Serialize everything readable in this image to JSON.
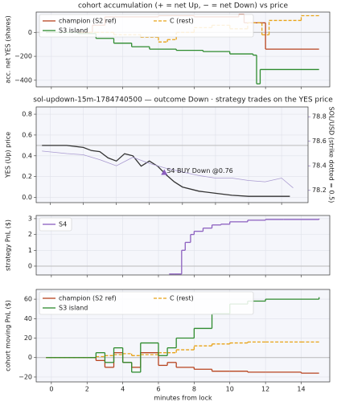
{
  "chart_data": [
    {
      "type": "line",
      "title": "cohort accumulation (+ = net Up, − = net Down) vs price",
      "ylabel": "acc. net YES (shares)",
      "ylim": [
        -455,
        170
      ],
      "yticks": [
        0,
        {
          "value": -200,
          "label": "−200"
        },
        {
          "value": -400,
          "label": "−400"
        }
      ],
      "hline": 0,
      "grid": true,
      "legend": "upper left",
      "series": [
        {
          "name": "champion (S2 ref)",
          "color": "#b8441f",
          "step": true,
          "x": [
            -0.3,
            1.8,
            2.3,
            3,
            6,
            8,
            10.5,
            10.8,
            11.7,
            12,
            15
          ],
          "values": [
            0,
            0,
            60,
            130,
            140,
            130,
            150,
            80,
            80,
            -140,
            -140
          ]
        },
        {
          "name": "C (rest)",
          "color": "#e8a317",
          "dash": true,
          "step": true,
          "x": [
            -0.3,
            2.5,
            3.5,
            5,
            6,
            6.5,
            7,
            8,
            9,
            10,
            11,
            11.8,
            12.2,
            14,
            15
          ],
          "values": [
            0,
            0,
            -20,
            -40,
            -80,
            -60,
            0,
            40,
            60,
            30,
            80,
            -20,
            100,
            140,
            140
          ]
        },
        {
          "name": "S3 island",
          "color": "#2e8b2e",
          "step": true,
          "x": [
            -0.3,
            1.5,
            2.5,
            3.5,
            4.5,
            5.5,
            7,
            8.5,
            10,
            11.3,
            11.5,
            11.7,
            15
          ],
          "values": [
            0,
            -10,
            -50,
            -90,
            -120,
            -140,
            -150,
            -160,
            -180,
            -190,
            -430,
            -310,
            -310
          ]
        }
      ]
    },
    {
      "type": "line",
      "title": "sol-updown-15m-1784740500 — outcome Down · strategy trades on the YES price",
      "ylabel": "YES (Up) price",
      "y2label": "SOL/USD (strike dotted = 0.5)",
      "y2color": "#8b6fc0",
      "ylim": [
        -0.05,
        0.87
      ],
      "yticks": [
        {
          "value": 0,
          "label": "0.0"
        },
        0.2,
        0.4,
        0.6,
        0.8
      ],
      "y2lim": [
        78.1,
        78.88
      ],
      "y2ticks": [
        78.2,
        78.4,
        78.6,
        78.8
      ],
      "hline": 0.5,
      "grid": true,
      "series": [
        {
          "color": "#333333",
          "x": [
            -0.5,
            1,
            2,
            2.5,
            3,
            3.5,
            4,
            4.5,
            5,
            5.5,
            6,
            6.5,
            7,
            7.5,
            8,
            9,
            10,
            11,
            12,
            13,
            14.5
          ],
          "values": [
            0.5,
            0.5,
            0.48,
            0.45,
            0.44,
            0.38,
            0.35,
            0.42,
            0.4,
            0.3,
            0.35,
            0.3,
            0.22,
            0.15,
            0.1,
            0.06,
            0.04,
            0.02,
            0.01,
            0.01,
            0.01
          ]
        },
        {
          "color": "#a99ad0",
          "axis": "y2",
          "x": [
            -0.5,
            1,
            2,
            3,
            4,
            5,
            6,
            7,
            8,
            9,
            10,
            11,
            12,
            13,
            14,
            14.7
          ],
          "values": [
            78.52,
            78.5,
            78.49,
            78.45,
            78.4,
            78.47,
            78.42,
            78.38,
            78.35,
            78.32,
            78.3,
            78.3,
            78.28,
            78.27,
            78.3,
            78.22
          ]
        }
      ],
      "annotations": [
        {
          "text": "S4 BUY Down @0.76",
          "x": 6.9,
          "y": 0.24,
          "color": "#8b5fbf"
        }
      ]
    },
    {
      "type": "line",
      "ylabel": "strategy PnL ($)",
      "ylim": [
        -0.56,
        3.2
      ],
      "yticks": [
        0,
        1,
        2,
        3
      ],
      "hline": 0,
      "grid": true,
      "legend": "upper left",
      "series": [
        {
          "name": "S4",
          "color": "#8b5fbf",
          "step": true,
          "x": [
            6.6,
            6.9,
            7.3,
            7.5,
            7.8,
            8,
            8.5,
            9,
            9.5,
            10,
            11,
            12,
            13,
            15
          ],
          "values": [
            -0.5,
            -0.5,
            1.0,
            1.5,
            2.0,
            2.2,
            2.4,
            2.6,
            2.65,
            2.8,
            2.9,
            2.95,
            2.95,
            3.0
          ]
        }
      ]
    },
    {
      "type": "line",
      "ylabel": "cohort moving PnL ($)",
      "xlabel": "minutes from lock",
      "xlim": [
        -0.85,
        15.6
      ],
      "xticks": [
        0,
        2,
        4,
        6,
        8,
        10,
        12,
        14
      ],
      "ylim": [
        -25,
        70
      ],
      "yticks": [
        {
          "value": -20,
          "label": "−20"
        },
        0,
        20,
        40,
        60
      ],
      "hline": 0,
      "grid": true,
      "legend": "upper left",
      "series": [
        {
          "name": "champion (S2 ref)",
          "color": "#b8441f",
          "step": true,
          "x": [
            -0.3,
            2,
            2.5,
            3,
            3.5,
            4,
            4.5,
            5,
            6,
            6.5,
            7,
            8,
            9,
            10,
            11,
            12,
            14,
            15
          ],
          "values": [
            0,
            0,
            -3,
            -10,
            5,
            -5,
            -10,
            5,
            -8,
            -5,
            -10,
            -12,
            -14,
            -14,
            -15,
            -15,
            -16,
            -16
          ]
        },
        {
          "name": "C (rest)",
          "color": "#e8a317",
          "dash": true,
          "step": true,
          "x": [
            -0.3,
            2,
            2.5,
            3,
            3.5,
            4,
            4.5,
            5,
            6,
            6.5,
            7,
            8,
            9,
            10,
            11,
            12,
            14,
            15
          ],
          "values": [
            0,
            0,
            1,
            2,
            3,
            4,
            2,
            3,
            5,
            5,
            8,
            12,
            14,
            15,
            16,
            16,
            16,
            16
          ]
        },
        {
          "name": "S3 island",
          "color": "#2e8b2e",
          "step": true,
          "x": [
            -0.3,
            2,
            2.5,
            3,
            3.5,
            4,
            4.5,
            5,
            6,
            6.5,
            7,
            8,
            9,
            10,
            11,
            12,
            14,
            15
          ],
          "values": [
            0,
            0,
            5,
            -5,
            10,
            -5,
            -15,
            15,
            2,
            10,
            20,
            30,
            45,
            55,
            58,
            60,
            60,
            62
          ]
        }
      ]
    }
  ]
}
